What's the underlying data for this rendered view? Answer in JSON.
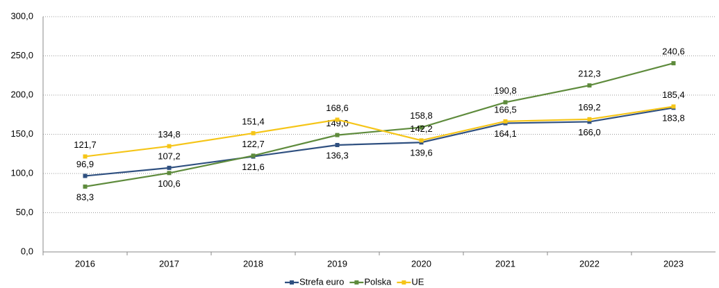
{
  "chart_data": {
    "type": "line",
    "categories": [
      "2016",
      "2017",
      "2018",
      "2019",
      "2020",
      "2021",
      "2022",
      "2023"
    ],
    "series": [
      {
        "name": "Strefa euro",
        "color": "#2f5080",
        "values": [
          96.9,
          107.2,
          121.6,
          136.3,
          139.6,
          164.1,
          166.0,
          183.8
        ],
        "value_labels": [
          "96,9",
          "107,2",
          "121,6",
          "136,3",
          "139,6",
          "164,1",
          "166,0",
          "183,8"
        ]
      },
      {
        "name": "Polska",
        "color": "#5e8b3c",
        "values": [
          83.3,
          100.6,
          122.7,
          149.0,
          158.8,
          190.8,
          212.3,
          240.6
        ],
        "value_labels": [
          "83,3",
          "100,6",
          "122,7",
          "149,0",
          "158,8",
          "190,8",
          "212,3",
          "240,6"
        ]
      },
      {
        "name": "UE",
        "color": "#f5c518",
        "values": [
          121.7,
          134.8,
          151.4,
          168.6,
          142.2,
          166.5,
          169.2,
          185.4
        ],
        "value_labels": [
          "121,7",
          "134,8",
          "151,4",
          "168,6",
          "142,2",
          "166,5",
          "169,2",
          "185,4"
        ]
      }
    ],
    "ylim": [
      0,
      300
    ],
    "yticks": [
      {
        "value": 0,
        "label": "0,0"
      },
      {
        "value": 50,
        "label": "50,0"
      },
      {
        "value": 100,
        "label": "100,0"
      },
      {
        "value": 150,
        "label": "150,0"
      },
      {
        "value": 200,
        "label": "200,0"
      },
      {
        "value": 250,
        "label": "250,0"
      },
      {
        "value": 300,
        "label": "300,0"
      }
    ],
    "grid": true,
    "legend": "bottom"
  }
}
